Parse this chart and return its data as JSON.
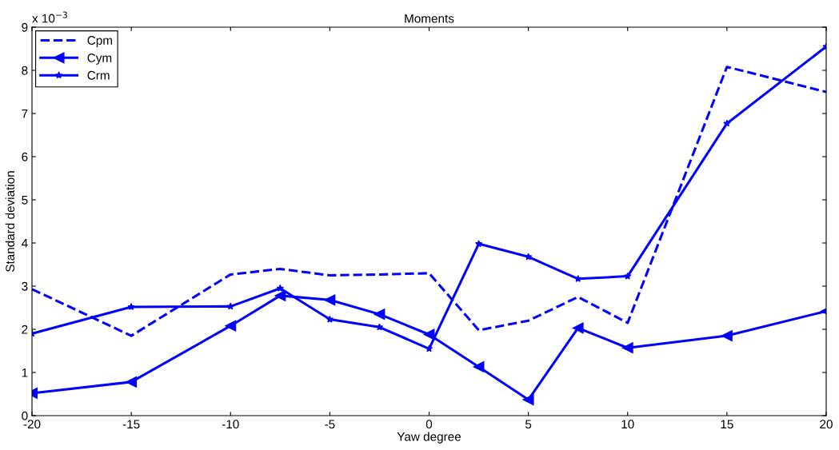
{
  "chart_data": {
    "type": "line",
    "title": "Moments",
    "xlabel": "Yaw degree",
    "ylabel": "Standard deviation",
    "annotations": [
      "x 10$^{−3}$"
    ],
    "x": [
      -20,
      -15,
      -10,
      -7.5,
      -5,
      -2.5,
      0,
      2.5,
      5,
      7.5,
      10,
      15,
      20
    ],
    "series": [
      {
        "name": "Cpm",
        "color": "#0000ff",
        "line_style": "dashed",
        "marker": "none",
        "values": [
          2.93,
          1.85,
          3.27,
          3.4,
          3.25,
          3.27,
          3.3,
          1.98,
          2.2,
          2.75,
          2.15,
          8.08,
          7.5
        ]
      },
      {
        "name": "Cym",
        "color": "#0000ff",
        "line_style": "solid",
        "marker": "triangle",
        "values": [
          0.52,
          0.78,
          2.08,
          2.78,
          2.68,
          2.35,
          1.88,
          1.13,
          0.37,
          2.03,
          1.57,
          1.85,
          2.42
        ]
      },
      {
        "name": "Crm",
        "color": "#0000ff",
        "line_style": "solid",
        "marker": "star",
        "values": [
          1.9,
          2.52,
          2.53,
          2.95,
          2.23,
          2.05,
          1.55,
          3.98,
          3.68,
          3.17,
          3.23,
          6.77,
          8.55
        ]
      }
    ],
    "xlim": [
      -20,
      20
    ],
    "xticks": [
      -20,
      -15,
      -10,
      -5,
      0,
      5,
      10,
      15,
      20
    ],
    "ylim": [
      0,
      9
    ],
    "yticks": [
      0,
      1,
      2,
      3,
      4,
      5,
      6,
      7,
      8,
      9
    ],
    "legend": "top left",
    "grid": false
  }
}
